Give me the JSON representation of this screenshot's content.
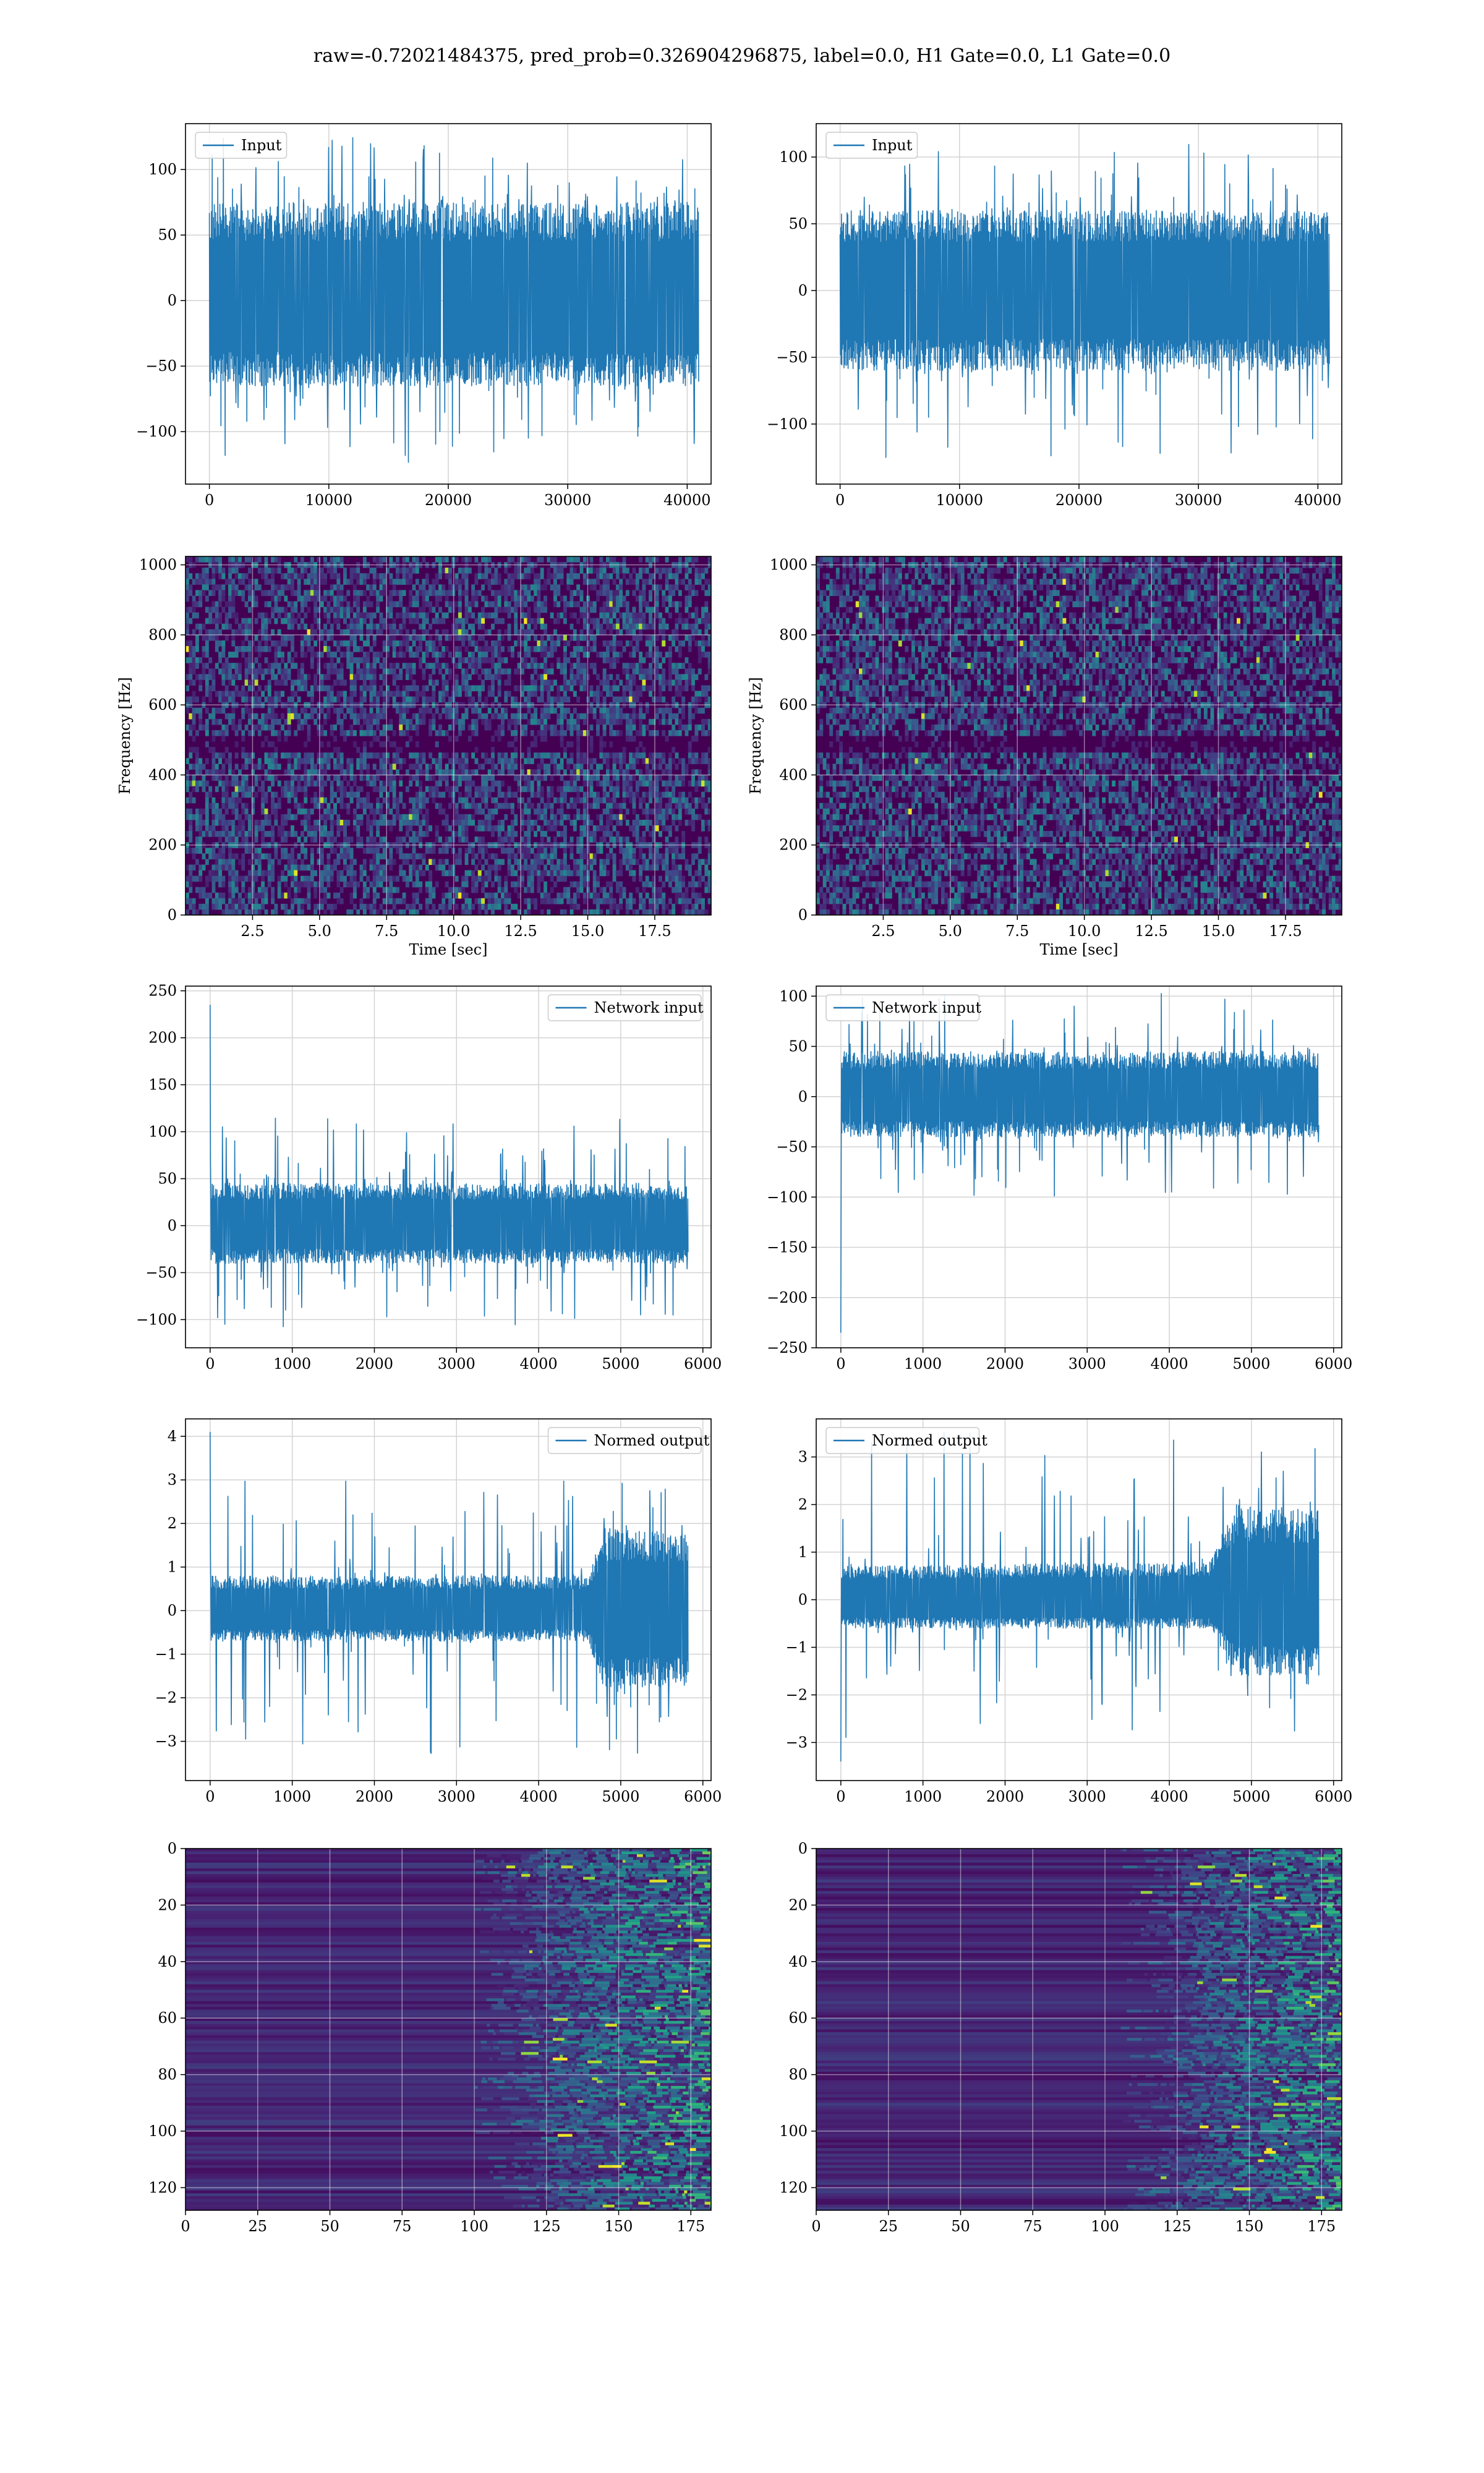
{
  "figure": {
    "suptitle": "raw=-0.72021484375, pred_prob=0.326904296875, label=0.0, H1 Gate=0.0, L1 Gate=0.0"
  },
  "colors": {
    "line": "#1f77b4",
    "grid": "#d3d3d3",
    "viridis_dark": "#440154",
    "viridis_mid": "#21918c",
    "viridis_bright": "#fde725"
  },
  "chart_data": [
    {
      "type": "line",
      "row": 1,
      "col": 1,
      "legend": "Input",
      "legend_loc": "upper-left",
      "xlim": [
        -2000,
        42000
      ],
      "ylim": [
        -140,
        135
      ],
      "xticks": [
        0,
        10000,
        20000,
        30000,
        40000
      ],
      "xtick_labels": [
        "0",
        "10000",
        "20000",
        "30000",
        "40000"
      ],
      "yticks": [
        -100,
        -50,
        0,
        50,
        100
      ],
      "ytick_labels": [
        "−100",
        "−50",
        "0",
        "50",
        "100"
      ],
      "x_range": [
        0,
        40960
      ],
      "envelope": [
        {
          "x": 0,
          "lo": -65,
          "hi": 75
        },
        {
          "x": 40960,
          "lo": -65,
          "hi": 75
        }
      ],
      "peak_max": 125,
      "peak_min": -125,
      "grid": true
    },
    {
      "type": "line",
      "row": 1,
      "col": 2,
      "legend": "Input",
      "legend_loc": "upper-left",
      "xlim": [
        -2000,
        42000
      ],
      "ylim": [
        -145,
        125
      ],
      "xticks": [
        0,
        10000,
        20000,
        30000,
        40000
      ],
      "xtick_labels": [
        "0",
        "10000",
        "20000",
        "30000",
        "40000"
      ],
      "yticks": [
        -100,
        -50,
        0,
        50,
        100
      ],
      "ytick_labels": [
        "−100",
        "−50",
        "0",
        "50",
        "100"
      ],
      "x_range": [
        0,
        40960
      ],
      "envelope": [
        {
          "x": 0,
          "lo": -60,
          "hi": 60
        },
        {
          "x": 40960,
          "lo": -60,
          "hi": 60
        }
      ],
      "peak_max": 110,
      "peak_min": -130,
      "grid": true
    },
    {
      "type": "heatmap",
      "row": 2,
      "col": 1,
      "xlabel": "Time [sec]",
      "ylabel": "Frequency [Hz]",
      "xlim": [
        0,
        19.6
      ],
      "ylim": [
        0,
        1024
      ],
      "xticks": [
        2.5,
        5.0,
        7.5,
        10.0,
        12.5,
        15.0,
        17.5
      ],
      "xtick_labels": [
        "2.5",
        "5.0",
        "7.5",
        "10.0",
        "12.5",
        "15.0",
        "17.5"
      ],
      "yticks": [
        0,
        200,
        400,
        600,
        800,
        1000
      ],
      "ytick_labels": [
        "0",
        "200",
        "400",
        "600",
        "800",
        "1000"
      ],
      "colormap": "viridis",
      "texture": "spectrogram",
      "dark_band_freq": 500,
      "grid": true
    },
    {
      "type": "heatmap",
      "row": 2,
      "col": 2,
      "xlabel": "Time [sec]",
      "ylabel": "Frequency [Hz]",
      "xlim": [
        0,
        19.6
      ],
      "ylim": [
        0,
        1024
      ],
      "xticks": [
        2.5,
        5.0,
        7.5,
        10.0,
        12.5,
        15.0,
        17.5
      ],
      "xtick_labels": [
        "2.5",
        "5.0",
        "7.5",
        "10.0",
        "12.5",
        "15.0",
        "17.5"
      ],
      "yticks": [
        0,
        200,
        400,
        600,
        800,
        1000
      ],
      "ytick_labels": [
        "0",
        "200",
        "400",
        "600",
        "800",
        "1000"
      ],
      "colormap": "viridis",
      "texture": "spectrogram",
      "dark_band_freq": 500,
      "grid": true
    },
    {
      "type": "line",
      "row": 3,
      "col": 1,
      "legend": "Network input",
      "legend_loc": "upper-right",
      "xlim": [
        -300,
        6100
      ],
      "ylim": [
        -130,
        255
      ],
      "xticks": [
        0,
        1000,
        2000,
        3000,
        4000,
        5000,
        6000
      ],
      "xtick_labels": [
        "0",
        "1000",
        "2000",
        "3000",
        "4000",
        "5000",
        "6000"
      ],
      "yticks": [
        -100,
        -50,
        0,
        50,
        100,
        150,
        200,
        250
      ],
      "ytick_labels": [
        "−100",
        "−50",
        "0",
        "50",
        "100",
        "150",
        "200",
        "250"
      ],
      "x_range": [
        0,
        5820
      ],
      "envelope": [
        {
          "x": 0,
          "lo": -40,
          "hi": 45
        },
        {
          "x": 5820,
          "lo": -40,
          "hi": 45
        }
      ],
      "spike": {
        "x": 0,
        "y": 235
      },
      "peak_max": 115,
      "peak_min": -110,
      "grid": true
    },
    {
      "type": "line",
      "row": 3,
      "col": 2,
      "legend": "Network input",
      "legend_loc": "upper-left",
      "xlim": [
        -300,
        6100
      ],
      "ylim": [
        -250,
        110
      ],
      "xticks": [
        0,
        1000,
        2000,
        3000,
        4000,
        5000,
        6000
      ],
      "xtick_labels": [
        "0",
        "1000",
        "2000",
        "3000",
        "4000",
        "5000",
        "6000"
      ],
      "yticks": [
        -250,
        -200,
        -150,
        -100,
        -50,
        0,
        50,
        100
      ],
      "ytick_labels": [
        "−250",
        "−200",
        "−150",
        "−100",
        "−50",
        "0",
        "50",
        "100"
      ],
      "x_range": [
        0,
        5820
      ],
      "envelope": [
        {
          "x": 0,
          "lo": -40,
          "hi": 45
        },
        {
          "x": 5820,
          "lo": -40,
          "hi": 45
        }
      ],
      "spike": {
        "x": 0,
        "y": -235
      },
      "peak_max": 110,
      "peak_min": -100,
      "grid": true
    },
    {
      "type": "line",
      "row": 4,
      "col": 1,
      "legend": "Normed output",
      "legend_loc": "upper-right",
      "xlim": [
        -300,
        6100
      ],
      "ylim": [
        -3.9,
        4.4
      ],
      "xticks": [
        0,
        1000,
        2000,
        3000,
        4000,
        5000,
        6000
      ],
      "xtick_labels": [
        "0",
        "1000",
        "2000",
        "3000",
        "4000",
        "5000",
        "6000"
      ],
      "yticks": [
        -3,
        -2,
        -1,
        0,
        1,
        2,
        3,
        4
      ],
      "ytick_labels": [
        "−3",
        "−2",
        "−1",
        "0",
        "1",
        "2",
        "3",
        "4"
      ],
      "x_range": [
        0,
        5820
      ],
      "envelope": [
        {
          "x": 0,
          "lo": -0.7,
          "hi": 0.8
        },
        {
          "x": 4600,
          "lo": -0.7,
          "hi": 0.8
        },
        {
          "x": 4800,
          "lo": -1.8,
          "hi": 1.9
        },
        {
          "x": 5820,
          "lo": -1.7,
          "hi": 1.8
        }
      ],
      "spike": {
        "x": 0,
        "y": 4.1
      },
      "peak_max": 3.0,
      "peak_min": -3.3,
      "grid": true
    },
    {
      "type": "line",
      "row": 4,
      "col": 2,
      "legend": "Normed output",
      "legend_loc": "upper-left",
      "xlim": [
        -300,
        6100
      ],
      "ylim": [
        -3.8,
        3.8
      ],
      "xticks": [
        0,
        1000,
        2000,
        3000,
        4000,
        5000,
        6000
      ],
      "xtick_labels": [
        "0",
        "1000",
        "2000",
        "3000",
        "4000",
        "5000",
        "6000"
      ],
      "yticks": [
        -3,
        -2,
        -1,
        0,
        1,
        2,
        3
      ],
      "ytick_labels": [
        "−3",
        "−2",
        "−1",
        "0",
        "1",
        "2",
        "3"
      ],
      "x_range": [
        0,
        5820
      ],
      "envelope": [
        {
          "x": 0,
          "lo": -0.6,
          "hi": 0.7
        },
        {
          "x": 4500,
          "lo": -0.6,
          "hi": 0.8
        },
        {
          "x": 4800,
          "lo": -1.6,
          "hi": 2.0
        },
        {
          "x": 5820,
          "lo": -1.6,
          "hi": 1.9
        }
      ],
      "spike": {
        "x": 0,
        "y": -3.4
      },
      "peak_max": 3.6,
      "peak_min": -3.0,
      "grid": true
    },
    {
      "type": "heatmap",
      "row": 5,
      "col": 1,
      "xlim": [
        0,
        182
      ],
      "ylim": [
        128,
        0
      ],
      "xticks": [
        0,
        25,
        50,
        75,
        100,
        125,
        150,
        175
      ],
      "xtick_labels": [
        "0",
        "25",
        "50",
        "75",
        "100",
        "125",
        "150",
        "175"
      ],
      "yticks": [
        0,
        20,
        40,
        60,
        80,
        100,
        120
      ],
      "ytick_labels": [
        "0",
        "20",
        "40",
        "60",
        "80",
        "100",
        "120"
      ],
      "colormap": "viridis",
      "texture": "feature-map",
      "activity_onset": 115,
      "grid": true
    },
    {
      "type": "heatmap",
      "row": 5,
      "col": 2,
      "xlim": [
        0,
        182
      ],
      "ylim": [
        128,
        0
      ],
      "xticks": [
        0,
        25,
        50,
        75,
        100,
        125,
        150,
        175
      ],
      "xtick_labels": [
        "0",
        "25",
        "50",
        "75",
        "100",
        "125",
        "150",
        "175"
      ],
      "yticks": [
        0,
        20,
        40,
        60,
        80,
        100,
        120
      ],
      "ytick_labels": [
        "0",
        "20",
        "40",
        "60",
        "80",
        "100",
        "120"
      ],
      "colormap": "viridis",
      "texture": "feature-map",
      "activity_onset": 120,
      "grid": true
    }
  ]
}
